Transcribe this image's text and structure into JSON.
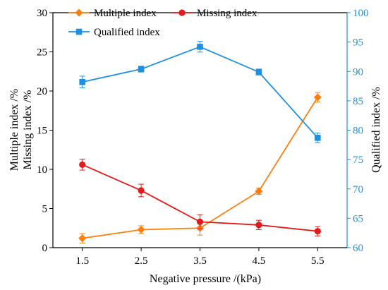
{
  "chart_data": {
    "type": "line",
    "x": [
      1.5,
      2.5,
      3.5,
      4.5,
      5.5
    ],
    "xlabel": "Negative pressure /(kPa)",
    "ylabel_left_lines": [
      "Multiple index /%",
      "Missing index /%"
    ],
    "ylabel_right": "Qualified index /%",
    "xlim": [
      1.0,
      6.0
    ],
    "ylim_left": [
      0,
      30
    ],
    "ylim_right": [
      60,
      100
    ],
    "xticks": [
      "1.5",
      "2.5",
      "3.5",
      "4.5",
      "5.5"
    ],
    "yticks_left": [
      "0",
      "5",
      "10",
      "15",
      "20",
      "25",
      "30"
    ],
    "yticks_right": [
      "60",
      "65",
      "70",
      "75",
      "80",
      "85",
      "90",
      "95",
      "100"
    ],
    "grid": false,
    "legend_placement": "top-left",
    "series": [
      {
        "name": "Multiple index",
        "axis": "left",
        "color": "#ff7f0e",
        "marker": "diamond",
        "values": [
          1.2,
          2.3,
          2.5,
          7.2,
          19.2
        ],
        "errors": [
          0.6,
          0.5,
          0.9,
          0.4,
          0.6
        ]
      },
      {
        "name": "Missing index",
        "axis": "left",
        "color": "#e31a1c",
        "marker": "circle",
        "values": [
          10.6,
          7.3,
          3.3,
          2.9,
          2.1
        ],
        "errors": [
          0.7,
          0.8,
          0.9,
          0.6,
          0.6
        ]
      },
      {
        "name": "Qualified index",
        "axis": "right",
        "color": "#1f8fe0",
        "marker": "square",
        "values": [
          88.2,
          90.4,
          94.2,
          89.9,
          78.7
        ],
        "errors": [
          1.0,
          0.5,
          0.9,
          0.5,
          0.8
        ]
      }
    ]
  }
}
